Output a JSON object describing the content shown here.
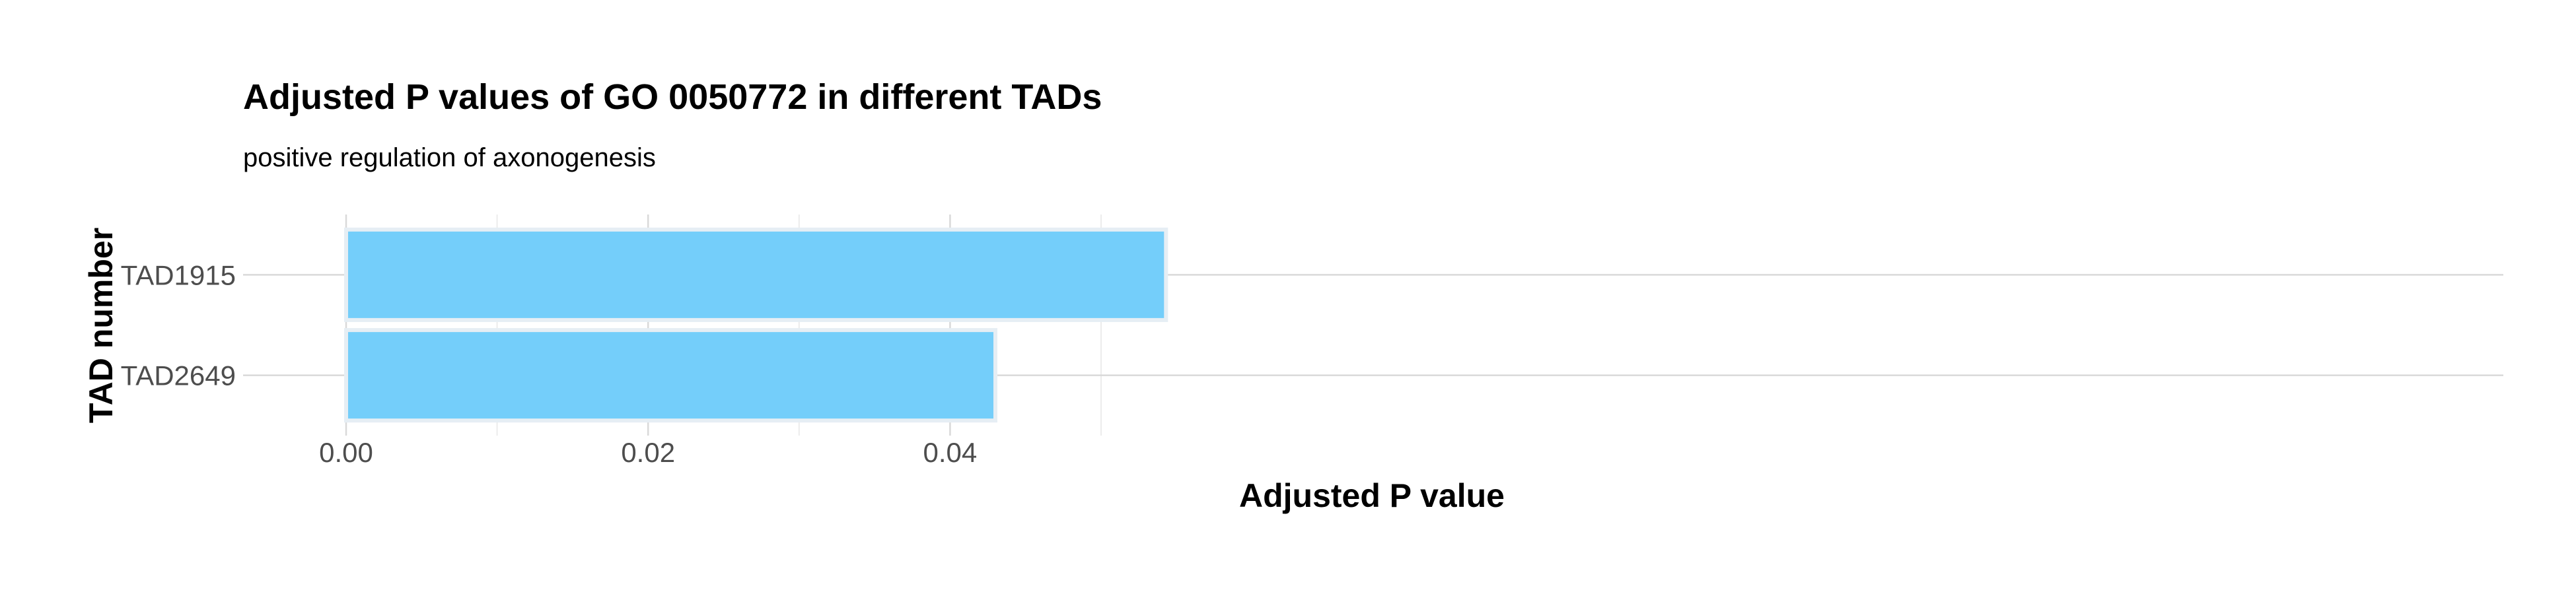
{
  "chart_data": {
    "type": "bar",
    "orientation": "horizontal",
    "title": "Adjusted P values of GO 0050772 in different TADs",
    "subtitle": "positive regulation of axonogenesis",
    "xlabel": "Adjusted P value",
    "ylabel": "TAD number",
    "categories": [
      "TAD1915",
      "TAD2649"
    ],
    "values": [
      0.0543,
      0.043
    ],
    "xlim": [
      0,
      0.057
    ],
    "x_ticks": [
      0.0,
      0.02,
      0.04
    ],
    "x_tick_labels": [
      "0.00",
      "0.02",
      "0.04"
    ],
    "grid": true,
    "legend": "none",
    "bar_color": "#74cefa"
  }
}
